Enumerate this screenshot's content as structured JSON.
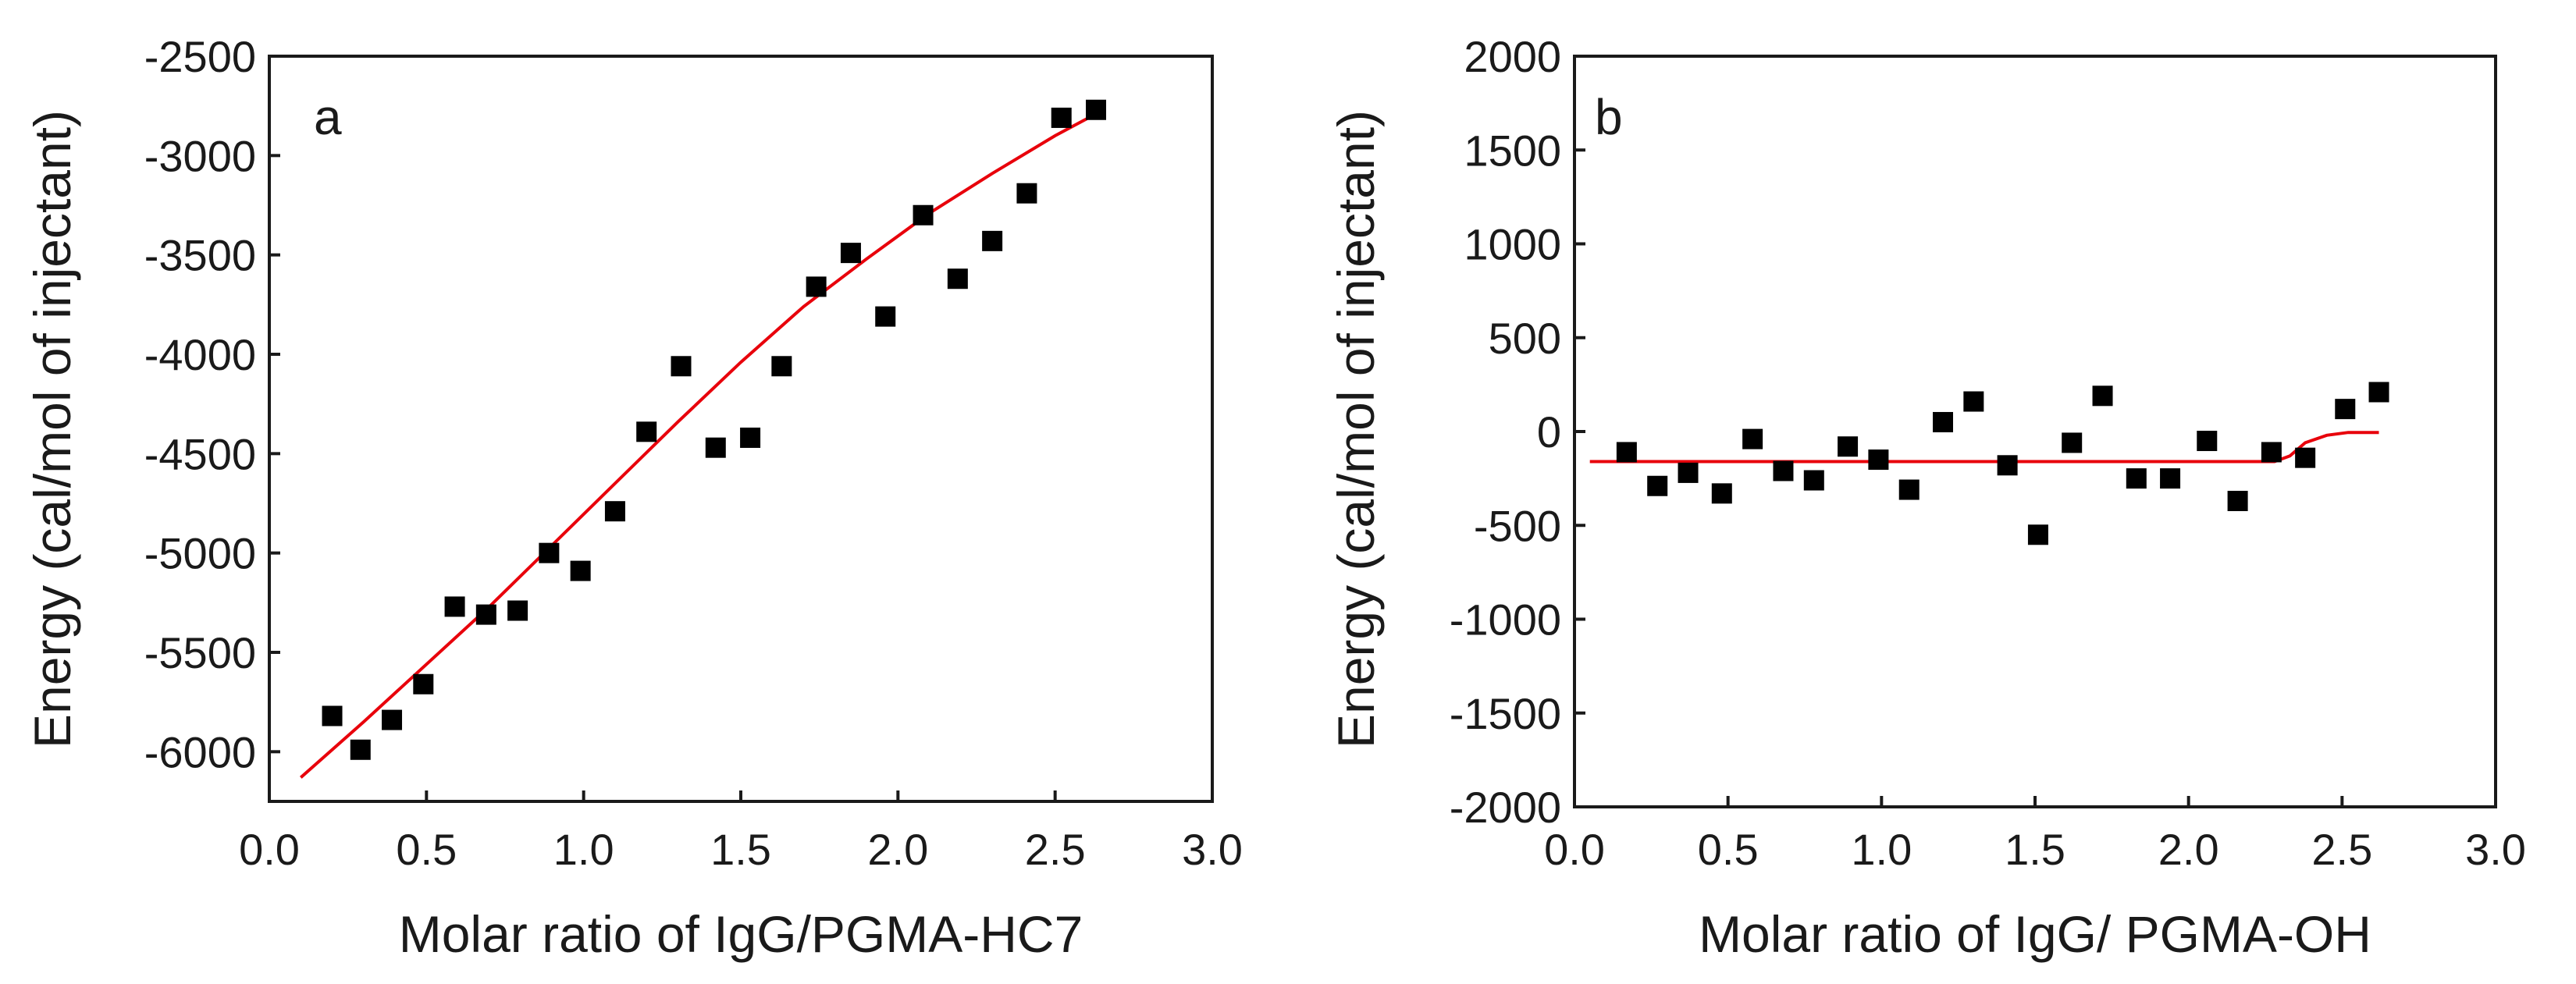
{
  "chart_data": [
    {
      "type": "scatter",
      "panel_label": "a",
      "xlabel": "Molar ratio of IgG/PGMA-HC7",
      "ylabel": "Energy (cal/mol of injectant)",
      "xlim": [
        0.0,
        3.0
      ],
      "ylim": [
        -6250,
        -2500
      ],
      "xticks": [
        "0.0",
        "0.5",
        "1.0",
        "1.5",
        "2.0",
        "2.5",
        "3.0"
      ],
      "xtick_values": [
        0.0,
        0.5,
        1.0,
        1.5,
        2.0,
        2.5,
        3.0
      ],
      "yticks": [
        "-2500",
        "-3000",
        "-3500",
        "-4000",
        "-4500",
        "-5000",
        "-5500",
        "-6000"
      ],
      "ytick_values": [
        -2500,
        -3000,
        -3500,
        -4000,
        -4500,
        -5000,
        -5500,
        -6000
      ],
      "series": [
        {
          "name": "data",
          "kind": "points",
          "color": "#000000",
          "x": [
            0.2,
            0.29,
            0.39,
            0.49,
            0.59,
            0.69,
            0.79,
            0.89,
            0.99,
            1.1,
            1.2,
            1.31,
            1.42,
            1.53,
            1.63,
            1.74,
            1.85,
            1.96,
            2.08,
            2.19,
            2.3,
            2.41,
            2.52,
            2.63
          ],
          "y": [
            -5820,
            -5990,
            -5840,
            -5660,
            -5270,
            -5310,
            -5290,
            -5000,
            -5090,
            -4790,
            -4390,
            -4060,
            -4470,
            -4420,
            -4060,
            -3660,
            -3490,
            -3810,
            -3300,
            -3620,
            -3430,
            -3190,
            -2810,
            -2770
          ]
        },
        {
          "name": "fit",
          "kind": "line",
          "color": "#e8000b",
          "x": [
            0.1,
            0.3,
            0.5,
            0.7,
            0.9,
            1.1,
            1.3,
            1.5,
            1.7,
            1.9,
            2.1,
            2.3,
            2.5,
            2.63
          ],
          "y": [
            -6130,
            -5850,
            -5560,
            -5270,
            -4960,
            -4650,
            -4340,
            -4040,
            -3760,
            -3520,
            -3290,
            -3090,
            -2900,
            -2790
          ]
        }
      ]
    },
    {
      "type": "scatter",
      "panel_label": "b",
      "xlabel": "Molar ratio of IgG/ PGMA-OH",
      "ylabel": "Energy (cal/mol of injectant)",
      "xlim": [
        0.0,
        3.0
      ],
      "ylim": [
        -2000,
        2000
      ],
      "xticks": [
        "0.0",
        "0.5",
        "1.0",
        "1.5",
        "2.0",
        "2.5",
        "3.0"
      ],
      "xtick_values": [
        0.0,
        0.5,
        1.0,
        1.5,
        2.0,
        2.5,
        3.0
      ],
      "yticks": [
        "2000",
        "1500",
        "1000",
        "500",
        "0",
        "-500",
        "-1000",
        "-1500",
        "-2000"
      ],
      "ytick_values": [
        2000,
        1500,
        1000,
        500,
        0,
        -500,
        -1000,
        -1500,
        -2000
      ],
      "series": [
        {
          "name": "data",
          "kind": "points",
          "color": "#000000",
          "x": [
            0.17,
            0.27,
            0.37,
            0.48,
            0.58,
            0.68,
            0.78,
            0.89,
            0.99,
            1.09,
            1.2,
            1.3,
            1.41,
            1.51,
            1.62,
            1.72,
            1.83,
            1.94,
            2.06,
            2.16,
            2.27,
            2.38,
            2.51,
            2.62
          ],
          "y": [
            -110,
            -290,
            -220,
            -330,
            -40,
            -210,
            -260,
            -80,
            -150,
            -310,
            50,
            160,
            -180,
            -550,
            -60,
            190,
            -250,
            -250,
            -50,
            -370,
            -110,
            -140,
            120,
            210
          ]
        },
        {
          "name": "fit",
          "kind": "line",
          "color": "#e8000b",
          "x": [
            0.05,
            1.0,
            2.0,
            2.28,
            2.33,
            2.38,
            2.45,
            2.52,
            2.62
          ],
          "y": [
            -160,
            -160,
            -160,
            -160,
            -130,
            -60,
            -20,
            -5,
            -5
          ]
        }
      ]
    }
  ]
}
